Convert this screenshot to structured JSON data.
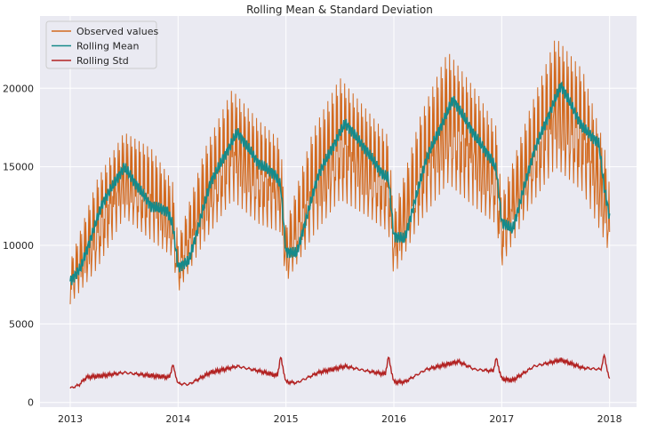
{
  "chart_data": {
    "type": "line",
    "title": "Rolling Mean & Standard Deviation",
    "xlabel": "",
    "ylabel": "",
    "xlim": [
      2012.72,
      2018.25
    ],
    "ylim": [
      -300,
      24600
    ],
    "x_ticks": [
      2013,
      2014,
      2015,
      2016,
      2017,
      2018
    ],
    "x_tick_labels": [
      "2013",
      "2014",
      "2015",
      "2016",
      "2017",
      "2018"
    ],
    "y_ticks": [
      0,
      5000,
      10000,
      15000,
      20000
    ],
    "y_tick_labels": [
      "0",
      "5000",
      "10000",
      "15000",
      "20000"
    ],
    "grid": true,
    "legend_position": "top-left",
    "background": "#eaeaf2",
    "series": [
      {
        "name": "Observed values",
        "color": "#d2691e",
        "x": [
          2013.0,
          2013.25,
          2013.5,
          2013.75,
          2013.95,
          2014.0,
          2014.25,
          2014.5,
          2014.75,
          2014.95,
          2015.0,
          2015.25,
          2015.5,
          2015.75,
          2015.95,
          2016.0,
          2016.25,
          2016.5,
          2016.75,
          2016.95,
          2017.0,
          2017.25,
          2017.5,
          2017.75,
          2017.95,
          2018.0
        ],
        "values": [
          7200,
          11000,
          14500,
          13000,
          11500,
          8200,
          13000,
          16500,
          14500,
          13000,
          9000,
          14000,
          17000,
          15000,
          13500,
          10000,
          15000,
          19000,
          16000,
          14500,
          10500,
          15500,
          19500,
          17500,
          13500,
          11500
        ],
        "band_low": [
          6100,
          8200,
          11500,
          10000,
          9000,
          6800,
          10000,
          12500,
          11000,
          10500,
          7400,
          10200,
          12500,
          11500,
          10500,
          7800,
          11200,
          13500,
          12000,
          11000,
          8400,
          12000,
          14500,
          13000,
          10000,
          9200
        ],
        "band_high": [
          9100,
          14500,
          17500,
          16500,
          14300,
          10500,
          16500,
          20300,
          18300,
          17000,
          11500,
          17700,
          21100,
          19000,
          17300,
          12300,
          18700,
          22800,
          20400,
          17900,
          13300,
          18800,
          23700,
          21600,
          16700,
          14000
        ]
      },
      {
        "name": "Rolling Mean",
        "color": "#168a8a",
        "x": [
          2013.0,
          2013.1,
          2013.3,
          2013.5,
          2013.6,
          2013.75,
          2013.9,
          2013.95,
          2014.0,
          2014.1,
          2014.3,
          2014.55,
          2014.75,
          2014.9,
          2014.95,
          2015.0,
          2015.1,
          2015.3,
          2015.55,
          2015.75,
          2015.9,
          2015.95,
          2016.0,
          2016.1,
          2016.3,
          2016.55,
          2016.75,
          2016.9,
          2016.95,
          2017.0,
          2017.1,
          2017.3,
          2017.55,
          2017.75,
          2017.9,
          2017.95,
          2018.0
        ],
        "values": [
          7700,
          8600,
          12700,
          15000,
          14000,
          12500,
          12200,
          11300,
          8600,
          9000,
          14000,
          17200,
          15200,
          14500,
          13800,
          9600,
          9500,
          14500,
          17800,
          16000,
          14500,
          14300,
          10600,
          10400,
          15500,
          19300,
          17000,
          15500,
          14800,
          11500,
          11000,
          16000,
          20200,
          17500,
          16500,
          13700,
          11800
        ]
      },
      {
        "name": "Rolling Std",
        "color": "#b22222",
        "x": [
          2013.0,
          2013.08,
          2013.15,
          2013.3,
          2013.5,
          2013.75,
          2013.92,
          2013.95,
          2014.0,
          2014.1,
          2014.3,
          2014.55,
          2014.75,
          2014.92,
          2014.95,
          2015.0,
          2015.1,
          2015.3,
          2015.55,
          2015.75,
          2015.92,
          2015.95,
          2016.0,
          2016.1,
          2016.3,
          2016.6,
          2016.75,
          2016.92,
          2016.95,
          2017.0,
          2017.1,
          2017.3,
          2017.55,
          2017.75,
          2017.92,
          2017.95,
          2018.0
        ],
        "values": [
          900,
          1100,
          1600,
          1700,
          1900,
          1700,
          1600,
          2400,
          1200,
          1150,
          1900,
          2300,
          2000,
          1700,
          2900,
          1300,
          1250,
          1900,
          2300,
          2000,
          1800,
          2900,
          1300,
          1300,
          2100,
          2600,
          2100,
          2000,
          2800,
          1500,
          1400,
          2300,
          2700,
          2200,
          2100,
          3000,
          1400
        ]
      }
    ]
  }
}
